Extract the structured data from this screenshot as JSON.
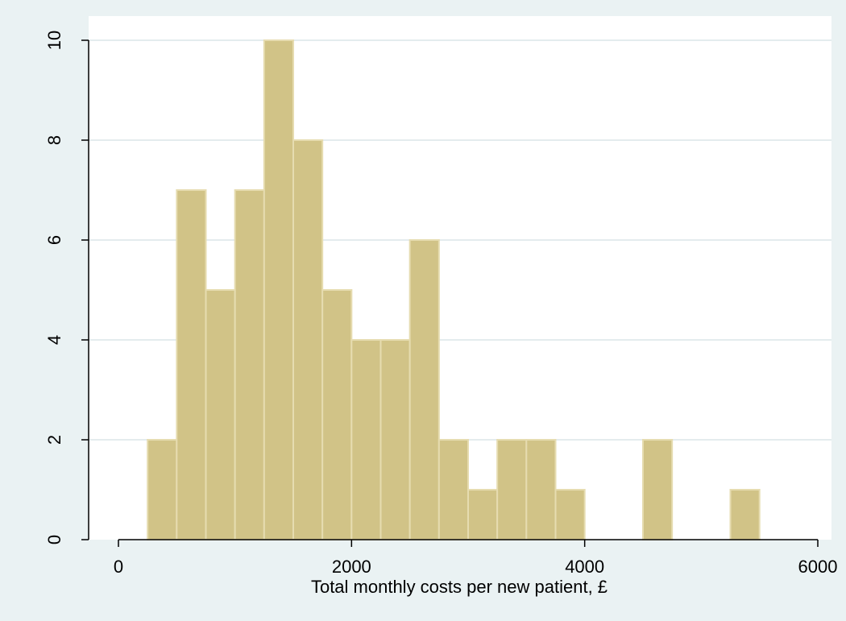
{
  "chart_data": {
    "type": "bar",
    "subtype": "histogram",
    "xlabel": "Total monthly costs per new patient, £",
    "ylabel": "",
    "bin_width": 250,
    "bins": [
      {
        "start": 250,
        "end": 500,
        "value": 2
      },
      {
        "start": 500,
        "end": 750,
        "value": 7
      },
      {
        "start": 750,
        "end": 1000,
        "value": 5
      },
      {
        "start": 1000,
        "end": 1250,
        "value": 7
      },
      {
        "start": 1250,
        "end": 1500,
        "value": 10
      },
      {
        "start": 1500,
        "end": 1750,
        "value": 8
      },
      {
        "start": 1750,
        "end": 2000,
        "value": 5
      },
      {
        "start": 2000,
        "end": 2250,
        "value": 4
      },
      {
        "start": 2250,
        "end": 2500,
        "value": 4
      },
      {
        "start": 2500,
        "end": 2750,
        "value": 6
      },
      {
        "start": 2750,
        "end": 3000,
        "value": 2
      },
      {
        "start": 3000,
        "end": 3250,
        "value": 1
      },
      {
        "start": 3250,
        "end": 3500,
        "value": 2
      },
      {
        "start": 3500,
        "end": 3750,
        "value": 2
      },
      {
        "start": 3750,
        "end": 4000,
        "value": 1
      },
      {
        "start": 4500,
        "end": 4750,
        "value": 2
      },
      {
        "start": 5250,
        "end": 5500,
        "value": 1
      }
    ],
    "xlim": [
      -250,
      6150
    ],
    "ylim": [
      0,
      10
    ],
    "x_ticks": [
      "0",
      "2000",
      "4000",
      "6000"
    ],
    "y_ticks": [
      "0",
      "2",
      "4",
      "6",
      "8",
      "10"
    ],
    "grid": true,
    "colors": {
      "background": "#eaf2f3",
      "plot_background": "#ffffff",
      "bar_fill": "#d1c387",
      "bar_stroke": "#e6dcb0",
      "grid": "#e4ecee",
      "axis": "#000000"
    }
  }
}
